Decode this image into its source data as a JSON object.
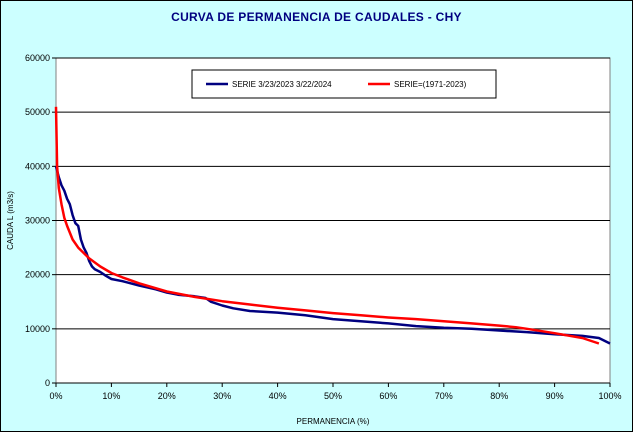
{
  "chart_data": {
    "type": "line",
    "title": "CURVA DE PERMANENCIA DE CAUDALES - CHY",
    "xlabel": "PERMANENCIA (%)",
    "ylabel": "CAUDA L (m3/s)",
    "xlim": [
      0,
      100
    ],
    "ylim": [
      0,
      60000
    ],
    "x_ticks": [
      "0%",
      "10%",
      "20%",
      "30%",
      "40%",
      "50%",
      "60%",
      "70%",
      "80%",
      "90%",
      "100%"
    ],
    "y_ticks": [
      "0",
      "10000",
      "20000",
      "30000",
      "40000",
      "50000",
      "60000"
    ],
    "grid": "horizontal",
    "legend_position": "top",
    "series": [
      {
        "name": "SERIE 3/23/2023 3/22/2024",
        "color": "#000080",
        "x": [
          0,
          0.5,
          1,
          1.5,
          2,
          2.5,
          3,
          3.5,
          4,
          4.5,
          5,
          5.5,
          6,
          6.5,
          7,
          8,
          9,
          10,
          12,
          15,
          18,
          20,
          22,
          25,
          27,
          28,
          30,
          32,
          35,
          40,
          45,
          50,
          55,
          60,
          65,
          70,
          75,
          80,
          85,
          90,
          95,
          98,
          100
        ],
        "y": [
          40000,
          38000,
          36500,
          35500,
          34000,
          33000,
          31000,
          29500,
          29000,
          26500,
          25000,
          24000,
          22500,
          21500,
          21000,
          20500,
          19800,
          19200,
          18800,
          18000,
          17300,
          16700,
          16300,
          16000,
          15700,
          15000,
          14300,
          13800,
          13300,
          13000,
          12500,
          11800,
          11400,
          11000,
          10500,
          10200,
          10000,
          9700,
          9400,
          9000,
          8700,
          8300,
          7300
        ]
      },
      {
        "name": "SERIE=(1971-2023)",
        "color": "#ff0000",
        "x": [
          0,
          0.2,
          0.5,
          1,
          1.5,
          2,
          3,
          4,
          5,
          6,
          8,
          10,
          12,
          15,
          20,
          25,
          30,
          35,
          40,
          45,
          50,
          55,
          60,
          65,
          70,
          75,
          80,
          83,
          85,
          90,
          95,
          98
        ],
        "y": [
          51000,
          40000,
          36000,
          33000,
          30500,
          29000,
          26500,
          25000,
          24000,
          23000,
          21500,
          20300,
          19500,
          18400,
          16900,
          15900,
          15100,
          14500,
          13900,
          13400,
          12900,
          12500,
          12100,
          11800,
          11400,
          11000,
          10600,
          10300,
          10000,
          9200,
          8300,
          7300
        ]
      }
    ]
  }
}
